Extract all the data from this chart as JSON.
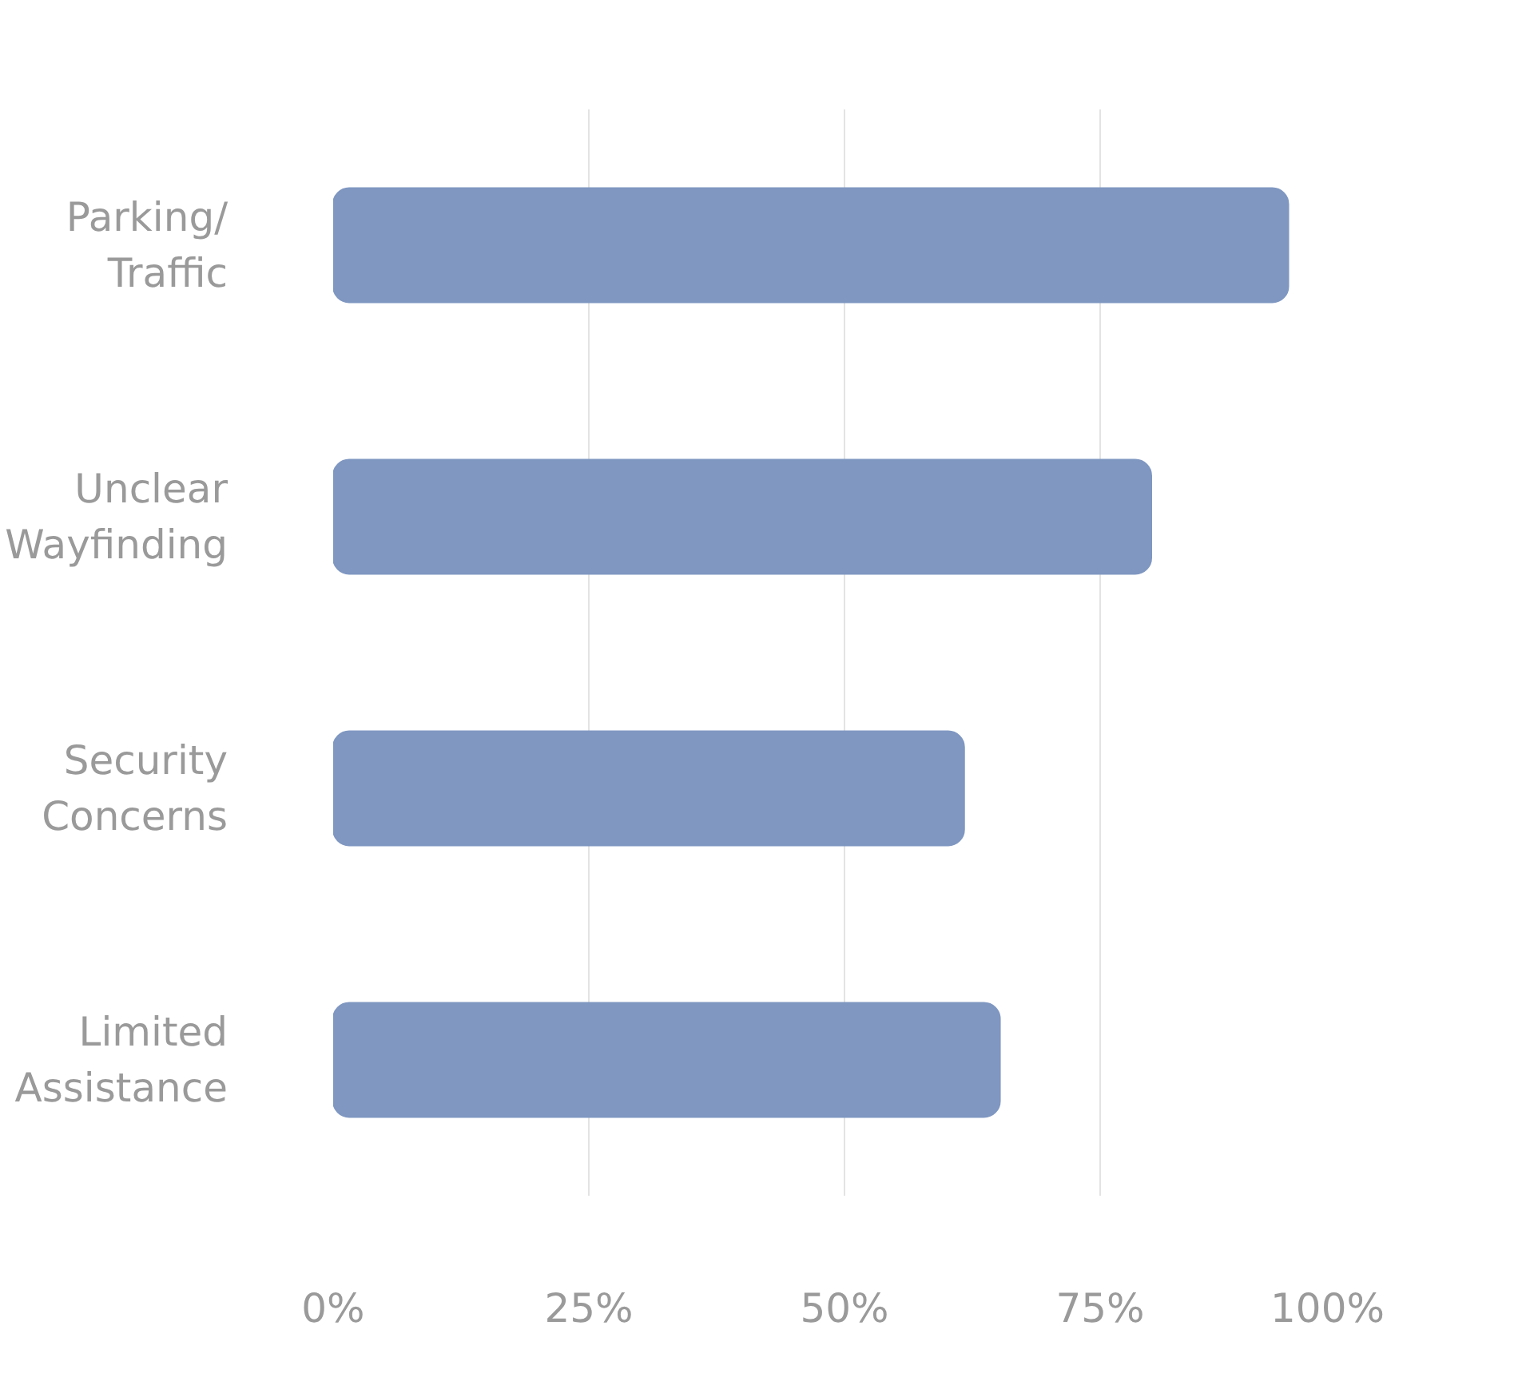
{
  "chart_data": {
    "type": "bar",
    "orientation": "horizontal",
    "categories": [
      "Parking/ Traffic",
      "Unclear Wayfinding",
      "Security Concerns",
      "Limited Assistance"
    ],
    "values": [
      93.4,
      80,
      61.7,
      65.2
    ],
    "color": "#7f97c1",
    "xlim": [
      0,
      100
    ],
    "xticks": [
      {
        "value": 0,
        "label": "0%"
      },
      {
        "value": 25,
        "label": "25%"
      },
      {
        "value": 50,
        "label": "50%"
      },
      {
        "value": 75,
        "label": "75%"
      },
      {
        "value": 100,
        "label": "100%"
      }
    ],
    "grid": "x"
  }
}
